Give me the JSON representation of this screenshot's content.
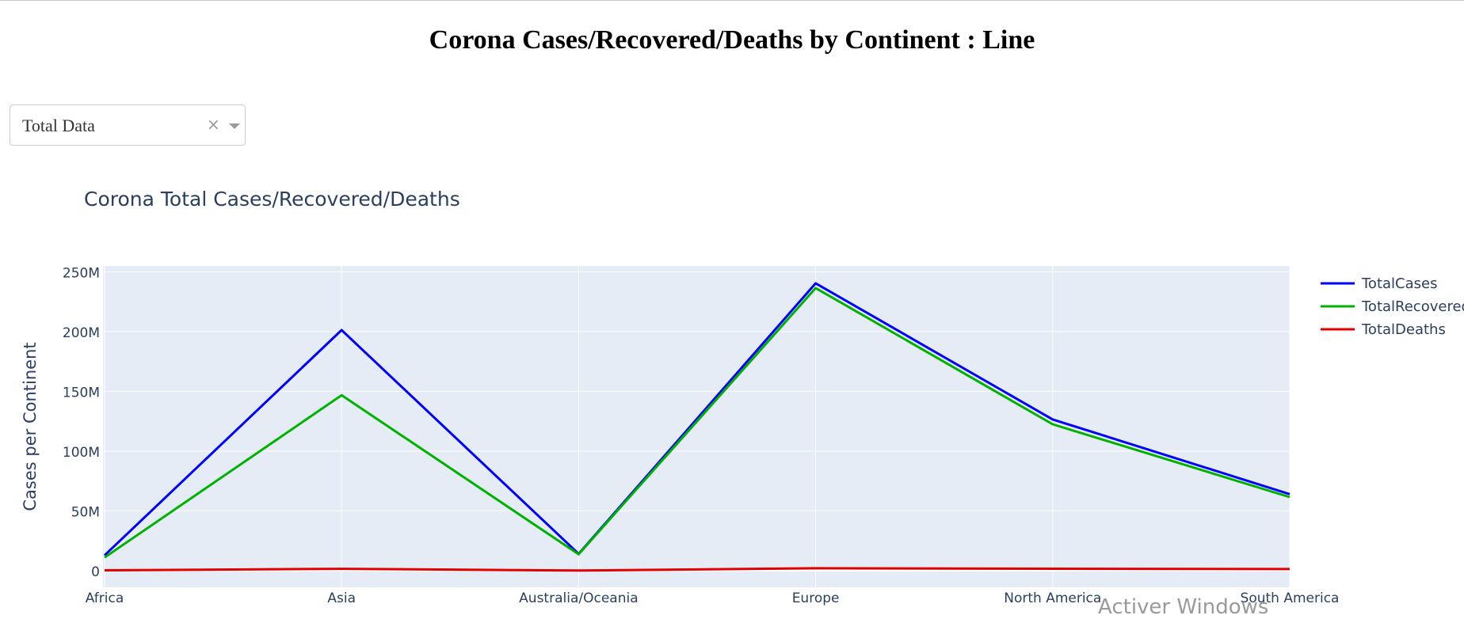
{
  "page": {
    "title": "Corona Cases/Recovered/Deaths by Continent : Line"
  },
  "dropdown": {
    "value": "Total Data",
    "clear_glyph": "×",
    "icons": [
      "clear-icon",
      "chevron-down-icon"
    ]
  },
  "colors": {
    "plot_bg": "#e5ecf6",
    "grid": "#ffffff",
    "text": "#2a3f5f",
    "TotalCases": "#0000ff",
    "TotalRecovered": "#00b200",
    "TotalDeaths": "#e00000"
  },
  "chart_data": {
    "type": "line",
    "title": "Corona Total Cases/Recovered/Deaths",
    "xlabel": "",
    "ylabel": "Cases per Continent",
    "categories": [
      "Africa",
      "Asia",
      "Australia/Oceania",
      "Europe",
      "North America",
      "South America"
    ],
    "ylim": [
      -14000000,
      255000000
    ],
    "yticks": [
      0,
      50000000,
      100000000,
      150000000,
      200000000,
      250000000
    ],
    "ytick_labels": [
      "0",
      "50M",
      "100M",
      "150M",
      "200M",
      "250M"
    ],
    "grid": true,
    "legend_position": "right",
    "series": [
      {
        "name": "TotalCases",
        "values": [
          12800000,
          201300000,
          14000000,
          240500000,
          126500000,
          64000000
        ]
      },
      {
        "name": "TotalRecovered",
        "values": [
          11000000,
          146800000,
          13700000,
          236500000,
          122500000,
          61500000
        ]
      },
      {
        "name": "TotalDeaths",
        "values": [
          260000,
          1500000,
          30000,
          2000000,
          1600000,
          1300000
        ]
      }
    ]
  },
  "watermark": "Activer Windows"
}
